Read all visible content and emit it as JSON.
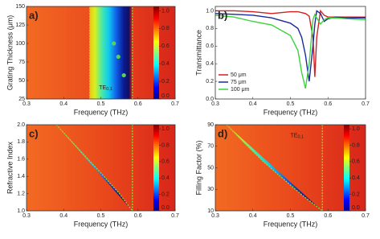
{
  "chart_data": [
    {
      "type": "heatmap",
      "label": "a)",
      "xlabel": "Frequency (THz)",
      "ylabel": "Grating Thickness (μm)",
      "xlim": [
        0.3,
        0.7
      ],
      "xticks": [
        0.3,
        0.4,
        0.5,
        0.6,
        0.7
      ],
      "ylim": [
        25,
        150
      ],
      "yticks": [
        25,
        50,
        75,
        100,
        125,
        150
      ],
      "colorbar": {
        "lim": [
          0,
          1.05
        ],
        "ticks": [
          {
            "value": 0,
            "label": "0.0"
          },
          {
            "value": 0.2,
            "label": "0.2"
          },
          {
            "value": 0.4,
            "label": "0.4"
          },
          {
            "value": 0.6,
            "label": "0.6"
          },
          {
            "value": 0.8,
            "label": "0.8"
          },
          {
            "value": 1,
            "label": "1.0"
          }
        ]
      },
      "lines": [
        {
          "x": [
            0.47,
            0.47
          ],
          "values": [
            25,
            150
          ]
        },
        {
          "x": [
            0.585,
            0.585
          ],
          "values": [
            25,
            150
          ]
        }
      ],
      "points": {
        "x": [
          0.535,
          0.547,
          0.562
        ],
        "values": [
          100,
          82,
          57
        ]
      },
      "annotation": {
        "text": "TE",
        "subscript": "0,1",
        "x": 0.495,
        "y": 40
      }
    },
    {
      "type": "line",
      "label": "b)",
      "xlabel": "Frequency (THz)",
      "ylabel": "Transmittance",
      "xlim": [
        0.3,
        0.7
      ],
      "xticks": [
        0.3,
        0.4,
        0.5,
        0.6,
        0.7
      ],
      "ylim": [
        0,
        1.05
      ],
      "yticks": [
        {
          "value": 0,
          "label": "0.0"
        },
        {
          "value": 0.2,
          "label": "0.2"
        },
        {
          "value": 0.4,
          "label": "0.4"
        },
        {
          "value": 0.6,
          "label": "0.6"
        },
        {
          "value": 0.8,
          "label": "0.8"
        },
        {
          "value": 1,
          "label": "1.0"
        }
      ],
      "legend": "lower-left",
      "x": [
        0.3,
        0.35,
        0.4,
        0.45,
        0.5,
        0.52,
        0.53,
        0.54,
        0.55,
        0.56,
        0.565,
        0.57,
        0.58,
        0.59,
        0.6,
        0.62,
        0.65,
        0.7
      ],
      "series": [
        {
          "name": "50 μm",
          "color": "#d42020",
          "values": [
            1.0,
            1.0,
            0.99,
            0.97,
            0.99,
            0.99,
            0.98,
            0.97,
            0.94,
            0.7,
            0.25,
            0.7,
            1.0,
            0.95,
            0.93,
            0.93,
            0.93,
            0.93
          ]
        },
        {
          "name": "75 μm",
          "color": "#1a2a9a",
          "values": [
            0.97,
            0.96,
            0.95,
            0.92,
            0.86,
            0.8,
            0.7,
            0.5,
            0.2,
            0.6,
            0.85,
            1.0,
            0.97,
            0.88,
            0.91,
            0.93,
            0.92,
            0.92
          ]
        },
        {
          "name": "100 μm",
          "color": "#3cd23c",
          "values": [
            0.95,
            0.93,
            0.88,
            0.84,
            0.72,
            0.55,
            0.3,
            0.12,
            0.4,
            0.9,
            0.96,
            0.92,
            0.85,
            0.9,
            0.92,
            0.92,
            0.91,
            0.9
          ]
        }
      ]
    },
    {
      "type": "heatmap",
      "label": "c)",
      "xlabel": "Frequency (THz)",
      "ylabel": "Refractive Index",
      "xlim": [
        0.3,
        0.7
      ],
      "xticks": [
        0.3,
        0.4,
        0.5,
        0.6,
        0.7
      ],
      "ylim": [
        1,
        2
      ],
      "yticks": [
        {
          "value": 1,
          "label": "1.0"
        },
        1.2,
        1.4,
        1.6,
        1.8,
        {
          "value": 2,
          "label": "2.0"
        }
      ],
      "colorbar": {
        "lim": [
          0,
          1.05
        ],
        "ticks": [
          {
            "value": 0,
            "label": "0.0"
          },
          {
            "value": 0.2,
            "label": "0.2"
          },
          {
            "value": 0.4,
            "label": "0.4"
          },
          {
            "value": 0.6,
            "label": "0.6"
          },
          {
            "value": 0.8,
            "label": "0.8"
          },
          {
            "value": 1,
            "label": "1.0"
          }
        ]
      },
      "lines": [
        {
          "x": [
            0.38,
            0.44,
            0.5,
            0.55,
            0.585
          ],
          "values": [
            2.0,
            1.72,
            1.44,
            1.2,
            1.0
          ]
        },
        {
          "x": [
            0.585,
            0.585
          ],
          "values": [
            1.0,
            2.0
          ]
        }
      ]
    },
    {
      "type": "heatmap",
      "label": "d)",
      "xlabel": "Frequency (THz)",
      "ylabel": "Filling Factor (%)",
      "xlim": [
        0.3,
        0.7
      ],
      "xticks": [
        0.3,
        0.4,
        0.5,
        0.6,
        0.7
      ],
      "ylim": [
        10,
        90
      ],
      "yticks": [
        10,
        30,
        50,
        70,
        90
      ],
      "colorbar": {
        "lim": [
          0,
          1.05
        ],
        "ticks": [
          {
            "value": 0,
            "label": "0.0"
          },
          {
            "value": 0.2,
            "label": "0.2"
          },
          {
            "value": 0.4,
            "label": "0.4"
          },
          {
            "value": 0.6,
            "label": "0.6"
          },
          {
            "value": 0.8,
            "label": "0.8"
          },
          {
            "value": 1,
            "label": "1.0"
          }
        ]
      },
      "lines": [
        {
          "x": [
            0.33,
            0.38,
            0.43,
            0.48,
            0.53,
            0.585
          ],
          "values": [
            90,
            72,
            55,
            40,
            25,
            10
          ]
        },
        {
          "x": [
            0.585,
            0.585
          ],
          "values": [
            10,
            90
          ]
        }
      ],
      "annotation": {
        "text": "TE",
        "subscript": "0,1",
        "x": 0.5,
        "y": 80
      }
    }
  ]
}
